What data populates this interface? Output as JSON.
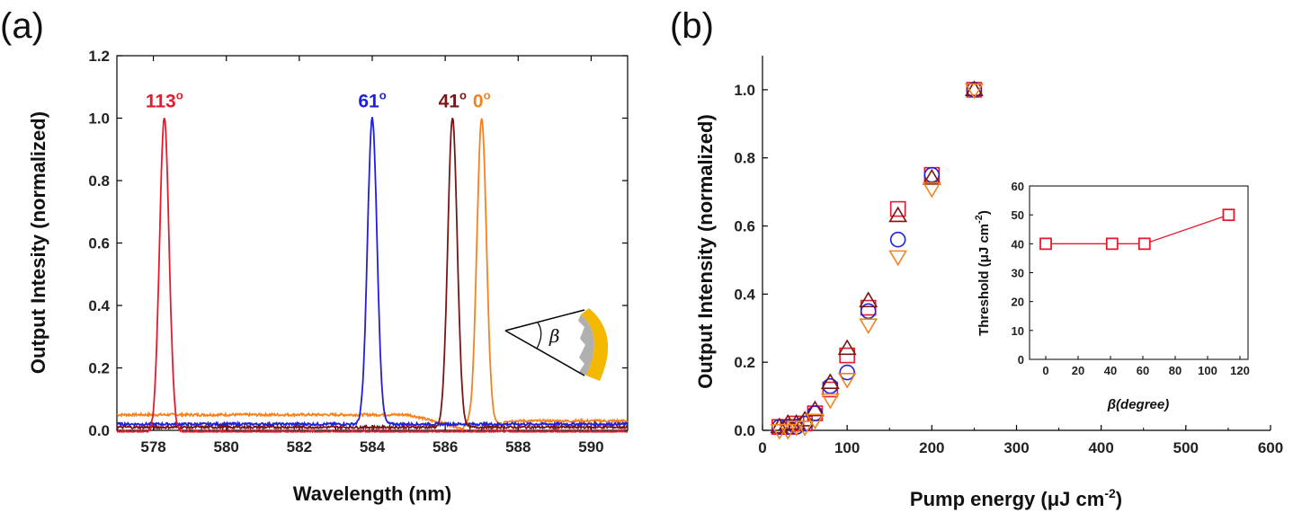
{
  "chart_data": [
    {
      "panel": "(a)",
      "type": "line",
      "xlabel": "Wavelength (nm)",
      "ylabel": "Output Intesity (normalized)",
      "xlim": [
        577,
        591
      ],
      "ylim": [
        0,
        1.2
      ],
      "xticks": [
        578,
        580,
        582,
        584,
        586,
        588,
        590
      ],
      "yticks": [
        "0.0",
        "0.2",
        "0.4",
        "0.6",
        "0.8",
        "1.0",
        "1.2"
      ],
      "series": [
        {
          "name": "113º",
          "color": "#e8192c",
          "peak": 578.3,
          "width": 0.13,
          "baseline": 0.0
        },
        {
          "name": "61º",
          "color": "#1f1fe0",
          "peak": 584.0,
          "width": 0.13,
          "baseline": 0.02
        },
        {
          "name": "41º",
          "color": "#7a1515",
          "peak": 586.2,
          "width": 0.13,
          "baseline": 0.01
        },
        {
          "name": "0º",
          "color": "#f5821f",
          "peak": 587.0,
          "width": 0.13,
          "baseline": 0.05
        }
      ],
      "peak_labels": [
        {
          "text": "113",
          "sup": "o",
          "color": "#e8192c"
        },
        {
          "text": "61",
          "sup": "o",
          "color": "#1f1fe0"
        },
        {
          "text": "41",
          "sup": "o",
          "color": "#7a1515"
        },
        {
          "text": "0",
          "sup": "o",
          "color": "#f5821f"
        }
      ],
      "inset_symbol": "β"
    },
    {
      "panel": "(b)",
      "type": "scatter",
      "xlabel": "Pump energy (μJ cm",
      "xlabel_sup": "-2",
      "xlabel_end": ")",
      "ylabel": "Output Intensity (normalized)",
      "xlim": [
        0,
        600
      ],
      "ylim": [
        0,
        1.1
      ],
      "xticks": [
        "0",
        "100",
        "200",
        "300",
        "400",
        "500",
        "600"
      ],
      "yticks": [
        "0.0",
        "0.2",
        "0.4",
        "0.6",
        "0.8",
        "1.0"
      ],
      "series": [
        {
          "name": "square",
          "marker": "square",
          "color": "#e8192c",
          "x": [
            20,
            30,
            40,
            50,
            62,
            80,
            100,
            125,
            160,
            200,
            250
          ],
          "y": [
            0.01,
            0.01,
            0.02,
            0.02,
            0.05,
            0.12,
            0.22,
            0.36,
            0.65,
            0.75,
            1.0
          ]
        },
        {
          "name": "circle",
          "marker": "circle",
          "color": "#1f1fe0",
          "x": [
            20,
            30,
            40,
            50,
            62,
            80,
            100,
            125,
            160,
            200,
            250
          ],
          "y": [
            0.01,
            0.01,
            0.01,
            0.02,
            0.05,
            0.13,
            0.17,
            0.35,
            0.56,
            0.75,
            1.0
          ]
        },
        {
          "name": "triangle-up",
          "marker": "triangle-up",
          "color": "#7a1515",
          "x": [
            20,
            30,
            40,
            50,
            62,
            80,
            100,
            125,
            160,
            200,
            250
          ],
          "y": [
            0.01,
            0.02,
            0.02,
            0.03,
            0.06,
            0.14,
            0.24,
            0.38,
            0.63,
            0.74,
            1.0
          ]
        },
        {
          "name": "triangle-down",
          "marker": "triangle-down",
          "color": "#f5821f",
          "x": [
            20,
            30,
            40,
            50,
            62,
            80,
            100,
            125,
            160,
            200,
            250
          ],
          "y": [
            0.0,
            0.0,
            0.01,
            0.01,
            0.03,
            0.09,
            0.15,
            0.31,
            0.51,
            0.71,
            1.0
          ]
        }
      ],
      "inset": {
        "type": "line",
        "xlabel": "β(degree)",
        "ylabel": "Threshold (μJ cm",
        "ylabel_sup": "-2",
        "ylabel_end": ")",
        "xlim": [
          -10,
          125
        ],
        "ylim": [
          0,
          60
        ],
        "xticks": [
          "0",
          "20",
          "40",
          "60",
          "80",
          "100",
          "120"
        ],
        "yticks": [
          "0",
          "10",
          "20",
          "30",
          "40",
          "50",
          "60"
        ],
        "color": "#e8192c",
        "x": [
          0,
          41,
          61,
          113
        ],
        "y": [
          40,
          40,
          40,
          50
        ]
      }
    }
  ]
}
